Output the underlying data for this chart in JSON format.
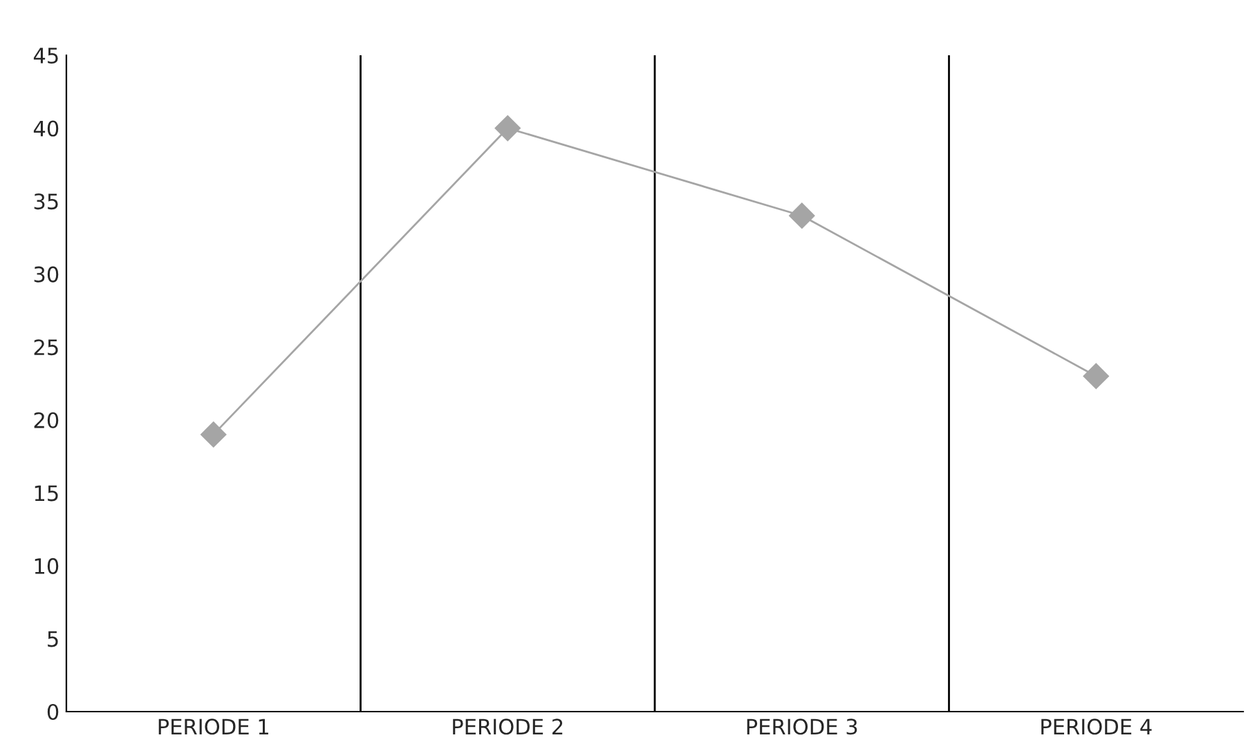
{
  "chart_data": {
    "type": "line",
    "categories": [
      "PERIODE 1",
      "PERIODE 2",
      "PERIODE 3",
      "PERIODE 4"
    ],
    "series": [
      {
        "color": "#a5a5a5",
        "values": [
          19,
          40,
          34,
          23
        ]
      }
    ],
    "ylim": [
      0,
      45
    ],
    "yticks": [
      0,
      5,
      10,
      15,
      20,
      25,
      30,
      35,
      40,
      45
    ],
    "grid": "x",
    "marker": "diamond",
    "line_style": "solid"
  }
}
